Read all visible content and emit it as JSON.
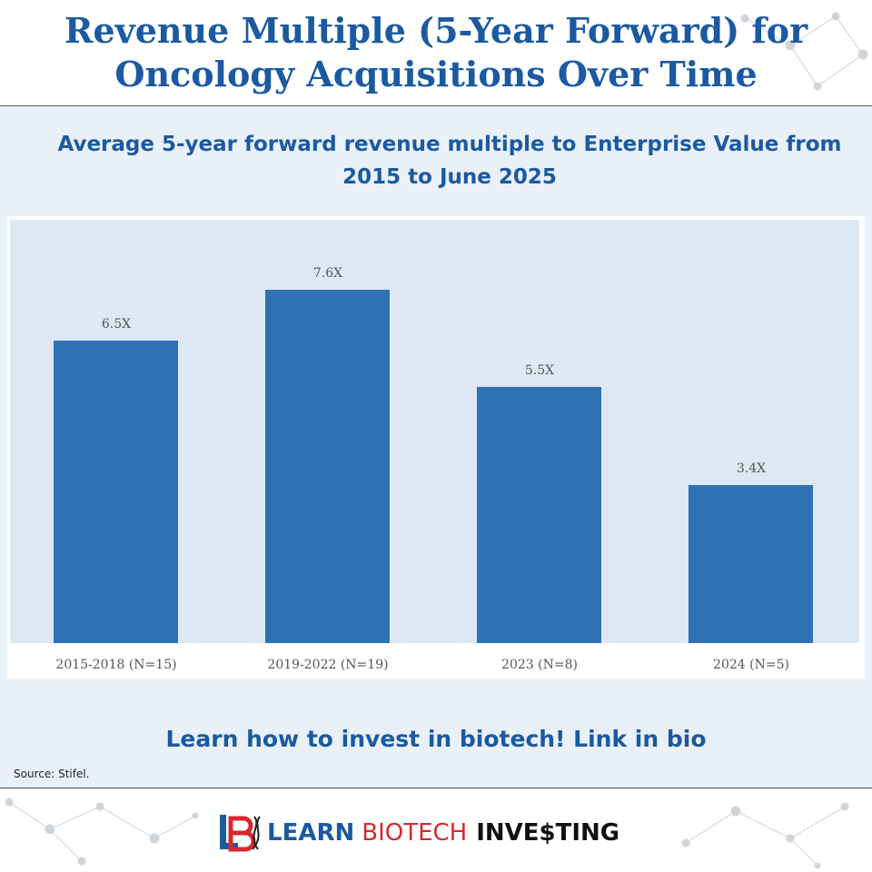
{
  "header": {
    "title": "Revenue Multiple (5-Year Forward) for Oncology Acquisitions Over Time"
  },
  "chart_data": {
    "type": "bar",
    "title": "Average 5-year forward revenue multiple to Enterprise Value from 2015 to June 2025",
    "categories": [
      "2015-2018 (N=15)",
      "2019-2022 (N=19)",
      "2023 (N=8)",
      "2024 (N=5)"
    ],
    "values": [
      6.5,
      7.6,
      5.5,
      3.4
    ],
    "data_labels": [
      "6.5X",
      "7.6X",
      "5.5X",
      "3.4X"
    ],
    "xlabel": "",
    "ylabel": "",
    "ylim": [
      0,
      9.1
    ],
    "grid": false,
    "colors": {
      "bar": "#2f72b4",
      "plot_background": "#dde8f4"
    }
  },
  "cta": "Learn how to invest in biotech! Link in bio",
  "source": "Source: Stifel.",
  "footer": {
    "logo_learn": "LEARN",
    "logo_biotech": "BIOTECH",
    "logo_investing": "INVE$TING"
  },
  "colors": {
    "accent": "#1b5aa0",
    "brand_red": "#d8282f"
  }
}
